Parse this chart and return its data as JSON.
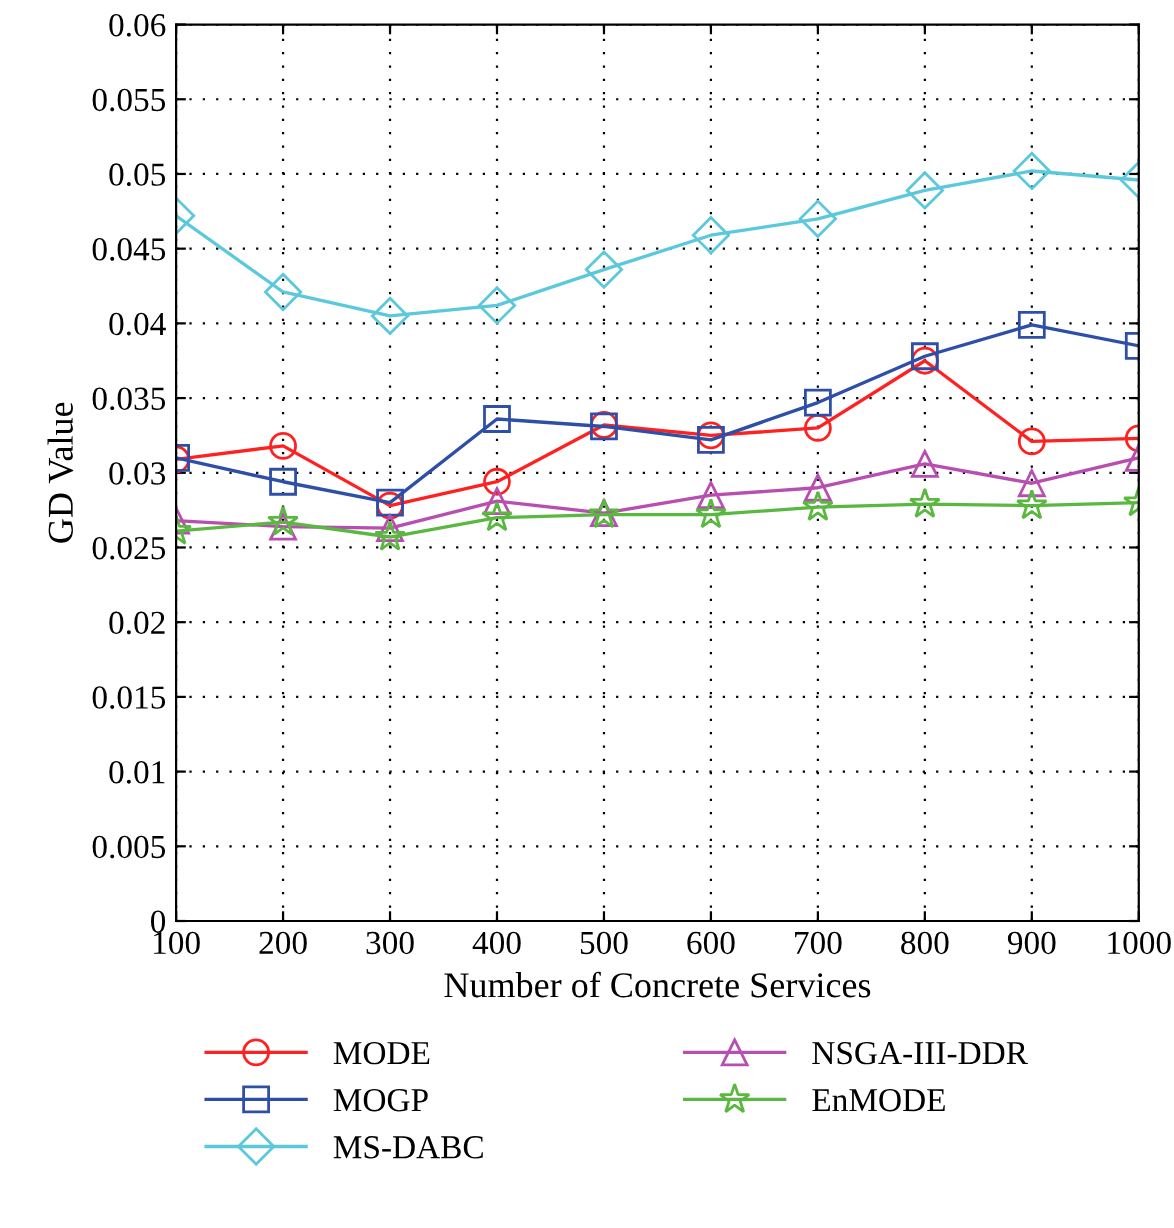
{
  "chart_data": {
    "type": "line",
    "xlabel": "Number of Concrete Services",
    "ylabel": "GD Value",
    "x": [
      100,
      200,
      300,
      400,
      500,
      600,
      700,
      800,
      900,
      1000
    ],
    "series": [
      {
        "name": "MODE",
        "color": "#ff2020",
        "marker": "circle",
        "values": [
          0.0309,
          0.0318,
          0.0278,
          0.0294,
          0.0332,
          0.0325,
          0.033,
          0.0375,
          0.0321,
          0.0323
        ]
      },
      {
        "name": "MOGP",
        "color": "#2e4fa8",
        "marker": "square",
        "values": [
          0.031,
          0.0294,
          0.028,
          0.0336,
          0.0331,
          0.0322,
          0.0347,
          0.0378,
          0.0399,
          0.0385
        ]
      },
      {
        "name": "MS-DABC",
        "color": "#5bc8dc",
        "marker": "diamond",
        "values": [
          0.0472,
          0.0421,
          0.0405,
          0.0412,
          0.0436,
          0.0459,
          0.047,
          0.0489,
          0.0502,
          0.0496
        ]
      },
      {
        "name": "NSGA-III-DDR",
        "color": "#b84fb0",
        "marker": "triangle",
        "values": [
          0.0268,
          0.0264,
          0.0263,
          0.0281,
          0.0273,
          0.0285,
          0.029,
          0.0306,
          0.0293,
          0.031
        ]
      },
      {
        "name": "EnMODE",
        "color": "#5ab840",
        "marker": "star",
        "values": [
          0.0261,
          0.0267,
          0.0257,
          0.027,
          0.0272,
          0.0272,
          0.0277,
          0.0279,
          0.0278,
          0.028
        ]
      }
    ],
    "xlim": [
      100,
      1000
    ],
    "xticks": [
      100,
      200,
      300,
      400,
      500,
      600,
      700,
      800,
      900,
      1000
    ],
    "ylim": [
      0,
      0.06
    ],
    "yticks": [
      0,
      0.005,
      0.01,
      0.015,
      0.02,
      0.025,
      0.03,
      0.035,
      0.04,
      0.045,
      0.05,
      0.055,
      0.06
    ],
    "grid": true,
    "legend": "bottom",
    "line_style": "solid"
  }
}
